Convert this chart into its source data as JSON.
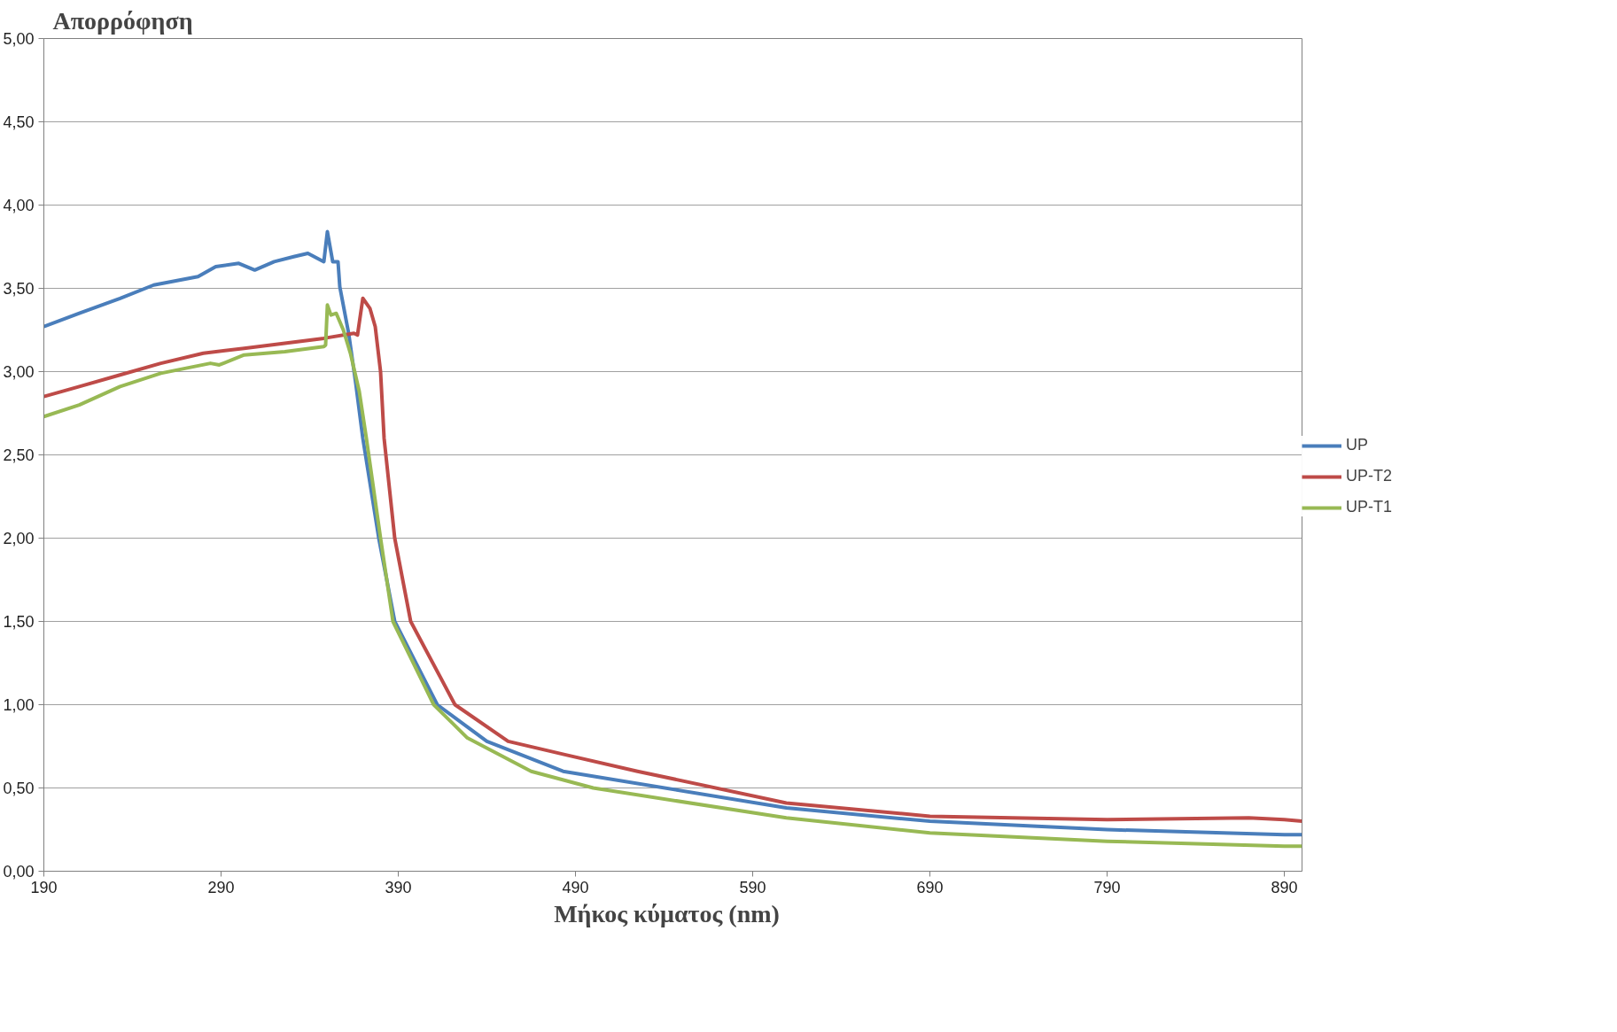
{
  "chart_data": {
    "type": "line",
    "title": "Απορρόφηση",
    "xlabel": "Μήκος κύματος   (nm)",
    "xlim": [
      190,
      900
    ],
    "xticks": [
      190,
      290,
      390,
      490,
      590,
      690,
      790,
      890
    ],
    "ylim": [
      0,
      5
    ],
    "yticks": [
      {
        "value": 0,
        "label": "0,00"
      },
      {
        "value": 0.5,
        "label": "0,50"
      },
      {
        "value": 1,
        "label": "1,00"
      },
      {
        "value": 1.5,
        "label": "1,50"
      },
      {
        "value": 2,
        "label": "2,00"
      },
      {
        "value": 2.5,
        "label": "2,50"
      },
      {
        "value": 3,
        "label": "3,00"
      },
      {
        "value": 3.5,
        "label": "3,50"
      },
      {
        "value": 4,
        "label": "4,00"
      },
      {
        "value": 4.5,
        "label": "4,50"
      },
      {
        "value": 5,
        "label": "5,00"
      }
    ],
    "grid": "y",
    "legend": "right",
    "marker": "none",
    "line_style": "solid",
    "series": [
      {
        "name": "UP",
        "color": "#4a7ebb",
        "x": [
          190,
          210,
          233,
          252,
          277,
          287,
          300,
          309,
          320,
          331,
          339,
          348,
          350,
          353,
          356,
          357,
          362,
          366,
          370,
          379,
          388,
          412,
          440,
          483,
          609,
          690,
          790,
          890,
          900
        ],
        "values": [
          3.27,
          3.35,
          3.44,
          3.52,
          3.57,
          3.63,
          3.65,
          3.61,
          3.66,
          3.69,
          3.71,
          3.66,
          3.84,
          3.66,
          3.66,
          3.51,
          3.23,
          2.93,
          2.6,
          2.0,
          1.5,
          1.0,
          0.78,
          0.6,
          0.38,
          0.3,
          0.25,
          0.22,
          0.22
        ]
      },
      {
        "name": "UP-T2",
        "color": "#be4b48",
        "x": [
          190,
          210,
          233,
          256,
          280,
          303,
          326,
          348,
          365,
          367,
          370,
          374,
          377,
          380,
          382,
          388,
          397,
          422,
          452,
          484,
          525,
          609,
          690,
          790,
          870,
          890,
          900
        ],
        "values": [
          2.85,
          2.91,
          2.98,
          3.05,
          3.11,
          3.14,
          3.17,
          3.2,
          3.23,
          3.22,
          3.44,
          3.38,
          3.27,
          3.0,
          2.6,
          2.0,
          1.5,
          1.0,
          0.78,
          0.7,
          0.6,
          0.41,
          0.33,
          0.31,
          0.32,
          0.31,
          0.3
        ]
      },
      {
        "name": "UP-T1",
        "color": "#98b954",
        "x": [
          190,
          210,
          233,
          256,
          284,
          289,
          303,
          326,
          348,
          349,
          350,
          352,
          355,
          359,
          363,
          368,
          372,
          380,
          387,
          410,
          429,
          465,
          500,
          609,
          690,
          790,
          890,
          900
        ],
        "values": [
          2.73,
          2.8,
          2.91,
          2.99,
          3.05,
          3.04,
          3.1,
          3.12,
          3.15,
          3.16,
          3.4,
          3.34,
          3.35,
          3.25,
          3.11,
          2.88,
          2.6,
          2.0,
          1.5,
          1.0,
          0.8,
          0.6,
          0.5,
          0.32,
          0.23,
          0.18,
          0.15,
          0.15
        ]
      }
    ]
  }
}
